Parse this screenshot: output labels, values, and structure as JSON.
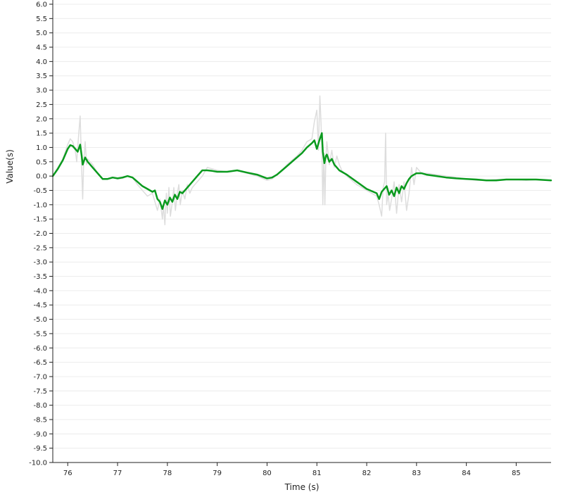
{
  "chart_data": {
    "type": "line",
    "title": "",
    "xlabel": "Time (s)",
    "ylabel": "Value(s)",
    "xlim": [
      75.7,
      85.7
    ],
    "ylim": [
      -10,
      6
    ],
    "x_ticks": [
      76,
      77,
      78,
      79,
      80,
      81,
      82,
      83,
      84,
      85
    ],
    "y_ticks": [
      6,
      5.5,
      5,
      4.5,
      4,
      3.5,
      3,
      2.5,
      2,
      1.5,
      1,
      0.5,
      0,
      -0.5,
      -1,
      -1.5,
      -2,
      -2.5,
      -3,
      -3.5,
      -4,
      -4.5,
      -5,
      -5.5,
      -6,
      -6.5,
      -7,
      -7.5,
      -8,
      -8.5,
      -9,
      -9.5,
      -10
    ],
    "x_tick_labels": [
      "76",
      "77",
      "78",
      "79",
      "80",
      "81",
      "82",
      "83",
      "84",
      "85"
    ],
    "y_tick_labels": [
      "6.0",
      "5.5",
      "5.0",
      "4.5",
      "4.0",
      "3.5",
      "3.0",
      "2.5",
      "2.0",
      "1.5",
      "1.0",
      "0.5",
      "0.0",
      "-0.5",
      "-1.0",
      "-1.5",
      "-2.0",
      "-2.5",
      "-3.0",
      "-3.5",
      "-4.0",
      "-4.5",
      "-5.0",
      "-5.5",
      "-6.0",
      "-6.5",
      "-7.0",
      "-7.5",
      "-8.0",
      "-8.5",
      "-9.0",
      "-9.5",
      "-10.0"
    ],
    "grid": true,
    "series": [
      {
        "color": "#dddddd",
        "x": [
          75.7,
          75.9,
          76.0,
          76.05,
          76.1,
          76.15,
          76.18,
          76.2,
          76.25,
          76.28,
          76.3,
          76.32,
          76.35,
          76.38,
          76.4,
          76.45,
          76.5,
          76.6,
          76.7,
          76.8,
          76.9,
          77.0,
          77.1,
          77.2,
          77.3,
          77.4,
          77.5,
          77.6,
          77.7,
          77.8,
          77.85,
          77.9,
          77.92,
          77.95,
          77.98,
          78.0,
          78.03,
          78.06,
          78.1,
          78.13,
          78.16,
          78.2,
          78.23,
          78.26,
          78.3,
          78.35,
          78.4,
          78.45,
          78.5,
          78.6,
          78.7,
          78.8,
          79.0,
          79.2,
          79.4,
          79.6,
          79.8,
          80.0,
          80.1,
          80.2,
          80.3,
          80.4,
          80.5,
          80.6,
          80.7,
          80.8,
          80.9,
          80.95,
          81.0,
          81.03,
          81.06,
          81.08,
          81.1,
          81.12,
          81.14,
          81.16,
          81.18,
          81.2,
          81.25,
          81.3,
          81.35,
          81.4,
          81.45,
          81.5,
          81.6,
          81.8,
          82.0,
          82.2,
          82.25,
          82.3,
          82.33,
          82.36,
          82.38,
          82.4,
          82.43,
          82.46,
          82.5,
          82.55,
          82.6,
          82.65,
          82.7,
          82.75,
          82.8,
          82.85,
          82.9,
          82.95,
          83.0,
          83.1,
          83.2,
          83.4,
          83.6,
          83.8,
          84.0,
          84.2,
          84.4,
          84.6,
          84.8,
          85.0,
          85.2,
          85.4,
          85.7
        ],
        "values": [
          0.0,
          0.6,
          1.1,
          1.3,
          1.2,
          0.9,
          0.5,
          1.0,
          2.1,
          0.2,
          -0.8,
          0.5,
          1.2,
          0.4,
          0.6,
          0.5,
          0.4,
          0.1,
          -0.1,
          -0.1,
          -0.05,
          -0.1,
          -0.08,
          0.0,
          -0.05,
          -0.3,
          -0.5,
          -0.7,
          -0.6,
          -1.2,
          -0.8,
          -1.5,
          -1.0,
          -1.7,
          -0.6,
          -1.3,
          -0.4,
          -1.4,
          -0.9,
          -0.4,
          -1.2,
          -0.6,
          -0.3,
          -1.0,
          -0.5,
          -0.8,
          -0.3,
          -0.6,
          -0.4,
          -0.2,
          0.0,
          0.3,
          0.2,
          0.15,
          0.2,
          0.1,
          0.0,
          -0.15,
          -0.1,
          0.05,
          0.2,
          0.4,
          0.55,
          0.7,
          0.9,
          1.2,
          1.3,
          1.9,
          2.3,
          0.9,
          2.8,
          2.0,
          1.0,
          -1.0,
          0.8,
          -1.0,
          0.6,
          1.2,
          0.4,
          0.9,
          0.3,
          0.7,
          0.4,
          0.2,
          0.0,
          -0.3,
          -0.5,
          -0.7,
          -1.0,
          -1.4,
          -0.4,
          -0.2,
          1.5,
          -1.0,
          -0.6,
          -1.2,
          -0.8,
          -0.2,
          -1.3,
          -0.3,
          -0.9,
          -0.2,
          -1.2,
          -0.6,
          0.3,
          -0.3,
          0.3,
          0.1,
          0.1,
          0.05,
          0.0,
          -0.05,
          -0.1,
          -0.15,
          -0.15,
          -0.12,
          -0.12,
          -0.12,
          -0.15,
          -0.12,
          -0.15
        ]
      },
      {
        "color": "#0a9a1e",
        "x": [
          75.7,
          75.8,
          75.9,
          76.0,
          76.05,
          76.1,
          76.15,
          76.2,
          76.25,
          76.28,
          76.3,
          76.35,
          76.4,
          76.45,
          76.5,
          76.6,
          76.7,
          76.8,
          76.9,
          77.0,
          77.1,
          77.2,
          77.3,
          77.4,
          77.5,
          77.6,
          77.7,
          77.75,
          77.8,
          77.85,
          77.9,
          77.95,
          78.0,
          78.05,
          78.1,
          78.15,
          78.2,
          78.25,
          78.3,
          78.4,
          78.5,
          78.6,
          78.7,
          78.8,
          78.9,
          79.0,
          79.2,
          79.4,
          79.6,
          79.8,
          80.0,
          80.1,
          80.2,
          80.3,
          80.4,
          80.5,
          80.6,
          80.7,
          80.8,
          80.9,
          80.95,
          81.0,
          81.05,
          81.1,
          81.12,
          81.15,
          81.18,
          81.2,
          81.25,
          81.3,
          81.35,
          81.4,
          81.45,
          81.5,
          81.6,
          81.8,
          82.0,
          82.2,
          82.25,
          82.3,
          82.35,
          82.4,
          82.45,
          82.5,
          82.55,
          82.6,
          82.65,
          82.7,
          82.75,
          82.8,
          82.85,
          82.9,
          82.95,
          83.0,
          83.1,
          83.2,
          83.4,
          83.6,
          83.8,
          84.0,
          84.2,
          84.4,
          84.6,
          84.8,
          85.0,
          85.2,
          85.4,
          85.7
        ],
        "values": [
          0.0,
          0.25,
          0.55,
          0.95,
          1.08,
          1.05,
          0.95,
          0.85,
          1.1,
          0.7,
          0.4,
          0.65,
          0.5,
          0.4,
          0.3,
          0.1,
          -0.1,
          -0.1,
          -0.05,
          -0.08,
          -0.05,
          0.0,
          -0.05,
          -0.2,
          -0.35,
          -0.45,
          -0.55,
          -0.5,
          -0.8,
          -0.9,
          -1.15,
          -0.85,
          -1.0,
          -0.75,
          -0.9,
          -0.65,
          -0.8,
          -0.55,
          -0.6,
          -0.4,
          -0.2,
          0.0,
          0.2,
          0.2,
          0.18,
          0.15,
          0.15,
          0.2,
          0.12,
          0.05,
          -0.08,
          -0.05,
          0.05,
          0.2,
          0.35,
          0.5,
          0.65,
          0.8,
          1.0,
          1.15,
          1.25,
          0.95,
          1.25,
          1.5,
          0.85,
          0.45,
          0.7,
          0.75,
          0.5,
          0.6,
          0.4,
          0.3,
          0.2,
          0.15,
          0.05,
          -0.2,
          -0.45,
          -0.6,
          -0.8,
          -0.55,
          -0.45,
          -0.35,
          -0.65,
          -0.5,
          -0.7,
          -0.4,
          -0.6,
          -0.35,
          -0.45,
          -0.25,
          -0.1,
          0.0,
          0.05,
          0.1,
          0.1,
          0.05,
          0.0,
          -0.05,
          -0.08,
          -0.1,
          -0.12,
          -0.15,
          -0.15,
          -0.12,
          -0.12,
          -0.12,
          -0.12,
          -0.15
        ]
      }
    ]
  }
}
